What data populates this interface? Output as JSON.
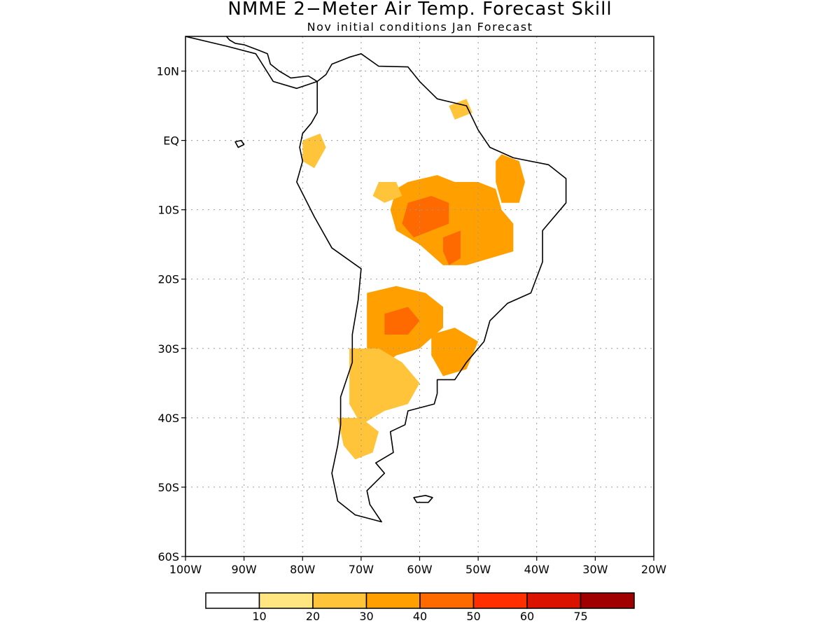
{
  "title": "NMME 2−Meter Air Temp. Forecast Skill",
  "subtitle": "Nov initial conditions  Jan Forecast",
  "map": {
    "region": "South America",
    "lon_range": [
      -100,
      -20
    ],
    "lat_range": [
      -60,
      15
    ],
    "grid": true,
    "lat_ticks": [
      {
        "lat": 10,
        "label": "10N"
      },
      {
        "lat": 0,
        "label": "EQ"
      },
      {
        "lat": -10,
        "label": "10S"
      },
      {
        "lat": -20,
        "label": "20S"
      },
      {
        "lat": -30,
        "label": "30S"
      },
      {
        "lat": -40,
        "label": "40S"
      },
      {
        "lat": -50,
        "label": "50S"
      },
      {
        "lat": -60,
        "label": "60S"
      }
    ],
    "lon_ticks": [
      {
        "lon": -100,
        "label": "100W"
      },
      {
        "lon": -90,
        "label": "90W"
      },
      {
        "lon": -80,
        "label": "80W"
      },
      {
        "lon": -70,
        "label": "70W"
      },
      {
        "lon": -60,
        "label": "60W"
      },
      {
        "lon": -50,
        "label": "50W"
      },
      {
        "lon": -40,
        "label": "40W"
      },
      {
        "lon": -30,
        "label": "30W"
      },
      {
        "lon": -20,
        "label": "20W"
      }
    ]
  },
  "colorbar": {
    "colors": [
      "#ffffff",
      "#ffe680",
      "#ffc43a",
      "#ffa000",
      "#ff6a00",
      "#ff2f00",
      "#dc1200",
      "#a00000"
    ],
    "labels": [
      "10",
      "20",
      "30",
      "40",
      "50",
      "60",
      "75"
    ]
  },
  "skill_regions": [
    {
      "name": "central-brazil",
      "level": 3,
      "polygon": [
        [
          -62,
          -6
        ],
        [
          -57,
          -5
        ],
        [
          -54,
          -6
        ],
        [
          -50,
          -6
        ],
        [
          -47,
          -7
        ],
        [
          -46,
          -10
        ],
        [
          -44,
          -12
        ],
        [
          -44,
          -16
        ],
        [
          -48,
          -17
        ],
        [
          -52,
          -18
        ],
        [
          -56,
          -18
        ],
        [
          -60,
          -15
        ],
        [
          -64,
          -13
        ],
        [
          -65,
          -10
        ],
        [
          -64,
          -7
        ]
      ]
    },
    {
      "name": "ne-brazil",
      "level": 3,
      "polygon": [
        [
          -46,
          -2
        ],
        [
          -43,
          -3
        ],
        [
          -42,
          -6
        ],
        [
          -43,
          -9
        ],
        [
          -46,
          -9
        ],
        [
          -47,
          -6
        ],
        [
          -47,
          -3
        ]
      ]
    },
    {
      "name": "central-brazil-core",
      "level": 4,
      "polygon": [
        [
          -62,
          -9
        ],
        [
          -58,
          -8
        ],
        [
          -55,
          -9
        ],
        [
          -55,
          -12
        ],
        [
          -58,
          -13
        ],
        [
          -61,
          -14
        ],
        [
          -63,
          -12
        ]
      ]
    },
    {
      "name": "central-brazil-core-2",
      "level": 4,
      "polygon": [
        [
          -56,
          -14
        ],
        [
          -53,
          -13
        ],
        [
          -53,
          -17
        ],
        [
          -55,
          -18
        ],
        [
          -56,
          -16
        ]
      ]
    },
    {
      "name": "gran-chaco",
      "level": 3,
      "polygon": [
        [
          -69,
          -22
        ],
        [
          -64,
          -21
        ],
        [
          -59,
          -22
        ],
        [
          -56,
          -24
        ],
        [
          -56,
          -27
        ],
        [
          -60,
          -30
        ],
        [
          -64,
          -31
        ],
        [
          -67,
          -33
        ],
        [
          -69,
          -30
        ]
      ]
    },
    {
      "name": "gran-chaco-core",
      "level": 4,
      "polygon": [
        [
          -66,
          -25
        ],
        [
          -62,
          -24
        ],
        [
          -60,
          -26
        ],
        [
          -62,
          -28
        ],
        [
          -66,
          -28
        ]
      ]
    },
    {
      "name": "argentina-central",
      "level": 2,
      "polygon": [
        [
          -72,
          -30
        ],
        [
          -67,
          -30
        ],
        [
          -63,
          -32
        ],
        [
          -60,
          -35
        ],
        [
          -62,
          -38
        ],
        [
          -66,
          -39
        ],
        [
          -70,
          -41
        ],
        [
          -72,
          -38
        ]
      ]
    },
    {
      "name": "patagonia",
      "level": 2,
      "polygon": [
        [
          -74,
          -40
        ],
        [
          -70,
          -40
        ],
        [
          -67,
          -42
        ],
        [
          -68,
          -45
        ],
        [
          -71,
          -46
        ],
        [
          -73,
          -44
        ]
      ]
    },
    {
      "name": "uruguay-south-brazil",
      "level": 3,
      "polygon": [
        [
          -58,
          -28
        ],
        [
          -54,
          -27
        ],
        [
          -50,
          -29
        ],
        [
          -52,
          -33
        ],
        [
          -56,
          -34
        ],
        [
          -58,
          -31
        ]
      ]
    },
    {
      "name": "ecuador",
      "level": 2,
      "polygon": [
        [
          -80,
          0
        ],
        [
          -77,
          1
        ],
        [
          -76,
          -1
        ],
        [
          -78,
          -4
        ],
        [
          -80,
          -3
        ]
      ]
    },
    {
      "name": "upper-amazon",
      "level": 2,
      "polygon": [
        [
          -67,
          -6
        ],
        [
          -64,
          -6
        ],
        [
          -63,
          -8
        ],
        [
          -66,
          -9
        ],
        [
          -68,
          -8
        ]
      ]
    },
    {
      "name": "guiana",
      "level": 2,
      "polygon": [
        [
          -55,
          5
        ],
        [
          -52,
          6
        ],
        [
          -51,
          4
        ],
        [
          -54,
          3
        ]
      ]
    }
  ],
  "landmasses": [
    {
      "name": "south-america",
      "polygon": [
        [
          -77.5,
          8.5
        ],
        [
          -76,
          9.5
        ],
        [
          -75,
          11
        ],
        [
          -72,
          12
        ],
        [
          -70,
          12.5
        ],
        [
          -67,
          10.7
        ],
        [
          -62,
          10.6
        ],
        [
          -60,
          8.5
        ],
        [
          -57,
          6
        ],
        [
          -52,
          5
        ],
        [
          -50,
          1.5
        ],
        [
          -48,
          -1
        ],
        [
          -44,
          -2.5
        ],
        [
          -38,
          -3.5
        ],
        [
          -35,
          -5.5
        ],
        [
          -35,
          -9
        ],
        [
          -39,
          -13
        ],
        [
          -39,
          -17.5
        ],
        [
          -41,
          -22
        ],
        [
          -45,
          -23.5
        ],
        [
          -48,
          -26
        ],
        [
          -49,
          -29
        ],
        [
          -52,
          -32
        ],
        [
          -54,
          -34.5
        ],
        [
          -57,
          -34.5
        ],
        [
          -57,
          -36.5
        ],
        [
          -57.5,
          -38
        ],
        [
          -62,
          -39
        ],
        [
          -62.5,
          -41
        ],
        [
          -65,
          -42
        ],
        [
          -64.5,
          -45
        ],
        [
          -67.5,
          -46.5
        ],
        [
          -66,
          -48
        ],
        [
          -69,
          -50.5
        ],
        [
          -68.5,
          -52.5
        ],
        [
          -66.5,
          -55
        ],
        [
          -71,
          -54
        ],
        [
          -74,
          -52
        ],
        [
          -75,
          -48
        ],
        [
          -74,
          -44
        ],
        [
          -73.5,
          -41
        ],
        [
          -73.5,
          -37
        ],
        [
          -71.5,
          -32
        ],
        [
          -71.5,
          -28
        ],
        [
          -70.5,
          -23
        ],
        [
          -70,
          -18.5
        ],
        [
          -75,
          -15.5
        ],
        [
          -78,
          -11
        ],
        [
          -81,
          -6
        ],
        [
          -80,
          -3
        ],
        [
          -80.5,
          -1
        ],
        [
          -80,
          1
        ],
        [
          -78.5,
          2.5
        ],
        [
          -77.5,
          4
        ],
        [
          -77.5,
          7
        ]
      ]
    },
    {
      "name": "central-america",
      "polygon": [
        [
          -77.5,
          8.5
        ],
        [
          -79,
          9.3
        ],
        [
          -82,
          9
        ],
        [
          -84,
          10
        ],
        [
          -85.5,
          11
        ],
        [
          -86,
          12.5
        ],
        [
          -87.5,
          13
        ],
        [
          -90,
          13.8
        ],
        [
          -91.5,
          14
        ],
        [
          -92.5,
          14.5
        ],
        [
          -94,
          16
        ],
        [
          -96,
          15.7
        ],
        [
          -98,
          16.3
        ],
        [
          -100,
          17
        ],
        [
          -100,
          15
        ],
        [
          -93,
          13.6
        ],
        [
          -88,
          12.5
        ],
        [
          -85,
          8.5
        ],
        [
          -81,
          7.5
        ]
      ]
    },
    {
      "name": "falklands",
      "polygon": [
        [
          -61,
          -51.5
        ],
        [
          -59,
          -51.2
        ],
        [
          -57.8,
          -51.5
        ],
        [
          -58.5,
          -52.2
        ],
        [
          -60.5,
          -52.2
        ]
      ]
    },
    {
      "name": "galapagos",
      "polygon": [
        [
          -91.5,
          -0.2
        ],
        [
          -90.5,
          0
        ],
        [
          -90,
          -0.6
        ],
        [
          -91,
          -1
        ]
      ]
    }
  ]
}
